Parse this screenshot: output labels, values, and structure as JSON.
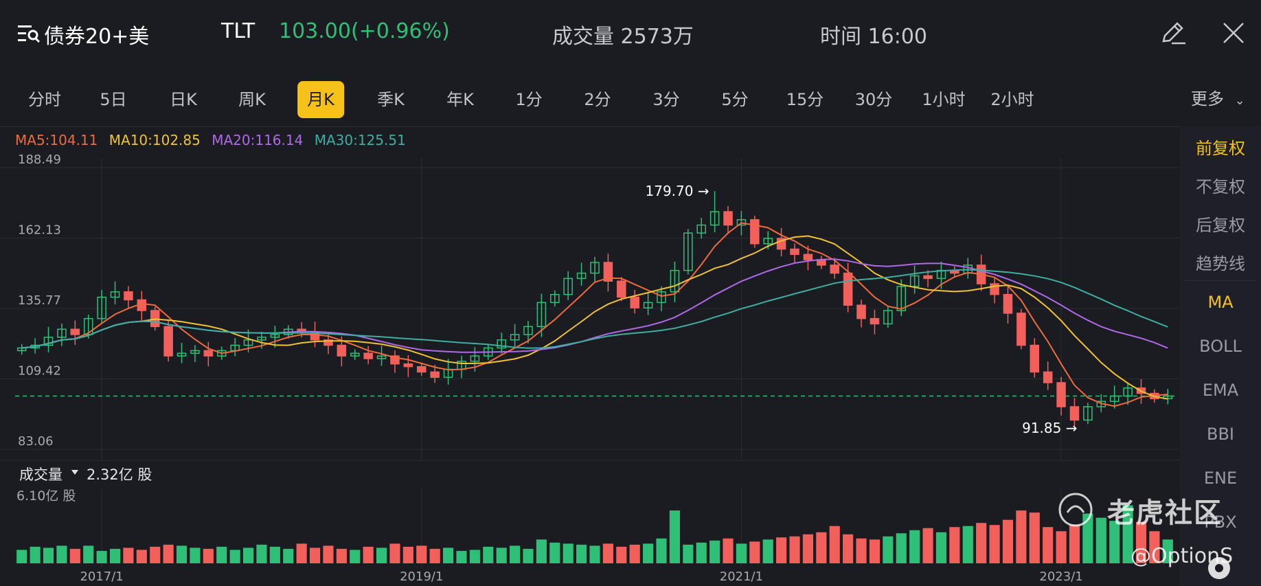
{
  "header": {
    "name": "债券20+美",
    "ticker": "TLT",
    "price_text": "103.00(+0.96%)",
    "volume_text": "成交量 2573万",
    "time_text": "时间 16:00",
    "menu_icon": "menu-search-icon",
    "edit_icon": "pencil-icon",
    "close_icon": "close-icon"
  },
  "tabs": [
    "分时",
    "5日",
    "日K",
    "周K",
    "月K",
    "季K",
    "年K",
    "1分",
    "2分",
    "3分",
    "5分",
    "15分",
    "30分",
    "1小时",
    "2小时"
  ],
  "active_tab": "月K",
  "more_label": "更多",
  "ma_legend": {
    "ma5": "MA5:104.11",
    "ma10": "MA10:102.85",
    "ma20": "MA20:116.14",
    "ma30": "MA30:125.51"
  },
  "side_menu": {
    "top": [
      "前复权",
      "不复权",
      "后复权",
      "趋势线"
    ],
    "indicators": [
      "MA",
      "BOLL",
      "EMA",
      "BBI",
      "ENE",
      "PBX"
    ],
    "active_top": "前复权",
    "active_indicator": "MA"
  },
  "volume_panel": {
    "label": "成交量",
    "value": "2.32亿 股",
    "max_label": "6.10亿 股"
  },
  "watermark": {
    "text": "老虎社区",
    "handle": "@OptionS"
  },
  "colors": {
    "up": "#2fbf76",
    "down": "#f2605c",
    "ma5": "#f06b3c",
    "ma10": "#f2c230",
    "ma20": "#b069e8",
    "ma30": "#3bb0a0",
    "accent": "#f6c21a",
    "background": "#1b1c22"
  },
  "chart_data": {
    "type": "candlestick",
    "interval": "monthly",
    "y_ticks": [
      "188.49",
      "162.13",
      "135.77",
      "109.42",
      "83.06"
    ],
    "ylim": [
      83.06,
      188.49
    ],
    "x_tick_labels": [
      "2017/1",
      "2019/1",
      "2021/1",
      "2023/1"
    ],
    "x_tick_months": [
      6,
      30,
      54,
      78
    ],
    "current_price": 103.0,
    "high_annotation": {
      "label": "179.70 →",
      "value": 179.7,
      "month": 52
    },
    "low_annotation": {
      "label": "91.85 →",
      "value": 91.85,
      "month": 79
    },
    "volume_max": 6.1,
    "closes": [
      121,
      122,
      125,
      128,
      126,
      132,
      140,
      142,
      139,
      135,
      129,
      118,
      119,
      120,
      118,
      120,
      122,
      124,
      125,
      126,
      128,
      127,
      124,
      122,
      118,
      119,
      117,
      118,
      115,
      114,
      112,
      110,
      113,
      116,
      118,
      121,
      124,
      126,
      129,
      138,
      141,
      147,
      149,
      153,
      146,
      140,
      136,
      138,
      142,
      150,
      164,
      167,
      172,
      167,
      169,
      160,
      162,
      158,
      156,
      154,
      152,
      149,
      137,
      132,
      130,
      135,
      144,
      148,
      147,
      150,
      149,
      152,
      145,
      141,
      134,
      122,
      112,
      108,
      99,
      94,
      99,
      101,
      103,
      106,
      104,
      102,
      103
    ],
    "volumes": [
      1.3,
      1.6,
      1.5,
      1.7,
      1.4,
      1.7,
      1.2,
      1.4,
      1.5,
      1.3,
      1.6,
      1.8,
      1.7,
      1.5,
      1.4,
      1.6,
      1.3,
      1.5,
      1.8,
      1.6,
      1.4,
      1.9,
      1.5,
      1.7,
      1.4,
      1.3,
      1.6,
      1.5,
      1.9,
      1.6,
      1.7,
      1.4,
      1.5,
      1.2,
      1.3,
      1.6,
      1.5,
      1.7,
      1.4,
      2.3,
      2.0,
      1.9,
      1.8,
      1.7,
      1.9,
      1.6,
      1.8,
      1.9,
      2.4,
      5.1,
      1.8,
      2.0,
      2.2,
      2.4,
      1.9,
      2.1,
      2.3,
      2.5,
      2.6,
      2.8,
      3.0,
      3.6,
      2.8,
      2.4,
      2.3,
      2.6,
      2.9,
      3.2,
      3.4,
      3.0,
      3.5,
      3.6,
      3.9,
      3.7,
      4.2,
      5.1,
      4.9,
      3.5,
      3.1,
      3.7,
      4.8,
      4.4,
      4.1,
      5.6,
      4.0,
      3.1,
      2.3
    ]
  }
}
